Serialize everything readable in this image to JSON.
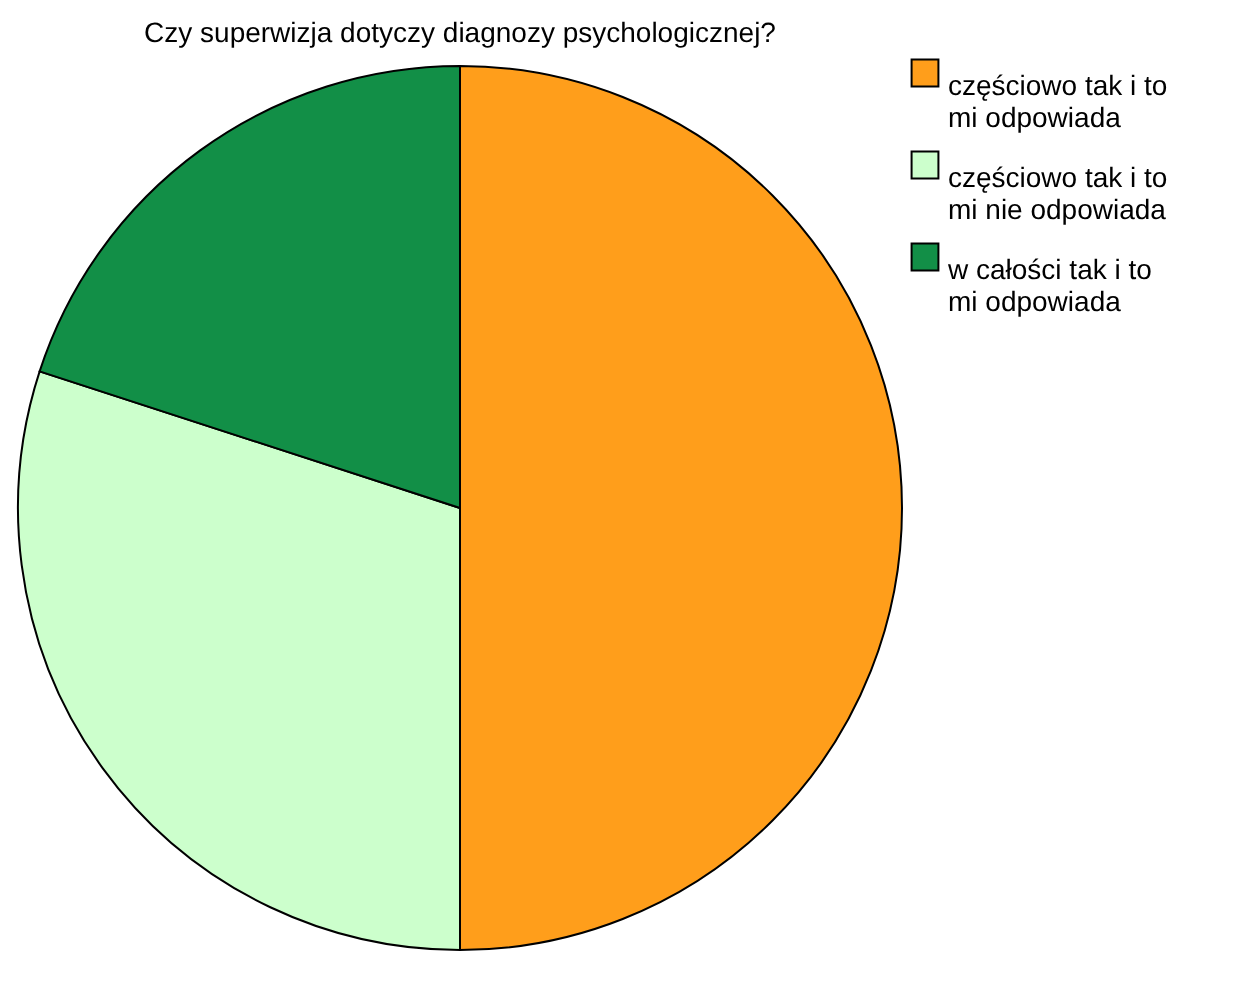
{
  "chart_data": {
    "type": "pie",
    "title": "Czy superwizja dotyczy diagnozy psychologicznej?",
    "categories": [
      "częściowo tak i to mi odpowiada",
      "częściowo tak i to mi nie odpowiada",
      "w całości tak i to mi odpowiada"
    ],
    "values": [
      50,
      30,
      20
    ],
    "colors": [
      "#ff9e1b",
      "#ccffcc",
      "#128f47"
    ],
    "legend": "top right"
  }
}
